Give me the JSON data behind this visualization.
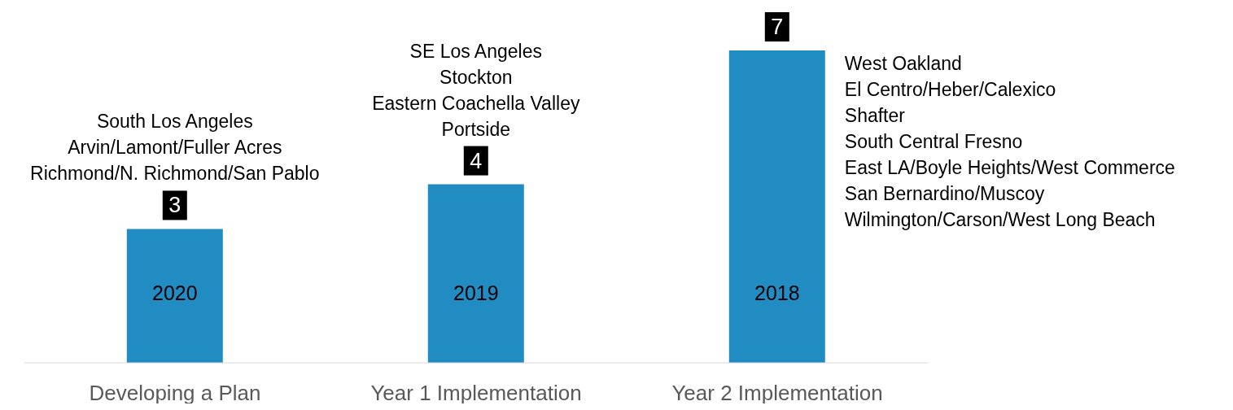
{
  "chart_data": {
    "type": "bar",
    "categories": [
      "Developing a Plan",
      "Year 1 Implementation",
      "Year 2 Implementation"
    ],
    "values": [
      3,
      4,
      7
    ],
    "color": "#218cc2",
    "data_labels": true,
    "annotations": [
      {
        "text": "South Los Angeles\nArvin/Lamont/Fuller Acres\nRichmond/N. Richmond/San Pablo",
        "x": "Developing a Plan",
        "y": 3
      },
      {
        "text": "SE Los Angeles\nStockton\nEastern Coachella Valley\nPortside",
        "x": "Year 1 Implementation",
        "y": 4
      },
      "West Oakland\nEl Centro/Heber/Calexico\nShafter\nSouth Central Fresno\nEast LA/Boyle Heights/West Commerce\nSan Bernardino/Muscoy\nWilmington/Carson/West Long Beach",
      "2020",
      "2019",
      "2018"
    ]
  }
}
